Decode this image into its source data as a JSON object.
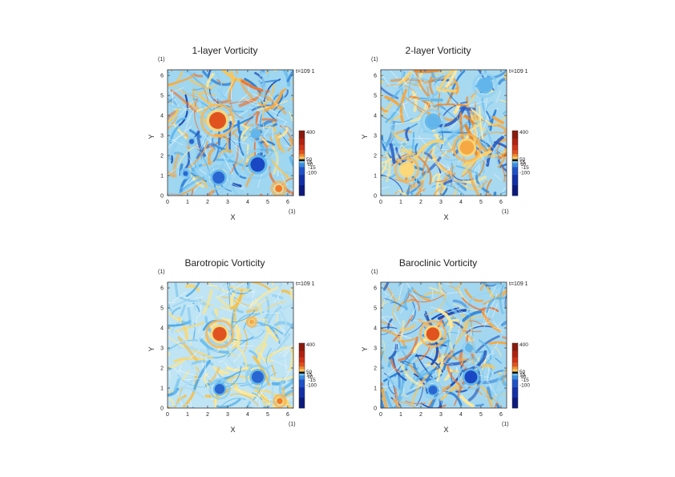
{
  "chart_data": [
    {
      "type": "heatmap",
      "title": "1-layer Vorticity",
      "xlabel": "X",
      "ylabel": "Y",
      "x_unit": "(1)",
      "y_unit": "(1)",
      "time_label": "t=109 1",
      "xlim": [
        0,
        6.283
      ],
      "ylim": [
        0,
        6.283
      ],
      "xticks": [
        "0",
        "1",
        "2",
        "3",
        "4",
        "5",
        "6"
      ],
      "yticks": [
        "0",
        "1",
        "2",
        "3",
        "4",
        "5",
        "6"
      ],
      "colorbar": {
        "labels": [
          "400",
          "50",
          "15",
          "10",
          "-15",
          "-100"
        ],
        "values": [
          400,
          50,
          15,
          10,
          -15,
          -100
        ]
      },
      "features": [
        {
          "x": 2.5,
          "y": 3.75,
          "r": 0.42,
          "vorticity": 400
        },
        {
          "x": 4.5,
          "y": 1.55,
          "r": 0.36,
          "vorticity": -200
        },
        {
          "x": 2.55,
          "y": 0.9,
          "r": 0.3,
          "vorticity": -150
        },
        {
          "x": 5.55,
          "y": 0.35,
          "r": 0.18,
          "vorticity": 250
        },
        {
          "x": 4.4,
          "y": 3.1,
          "r": 0.2,
          "vorticity": -90
        },
        {
          "x": 1.2,
          "y": 2.7,
          "r": 0.12,
          "vorticity": -120
        },
        {
          "x": 0.9,
          "y": 1.1,
          "r": 0.12,
          "vorticity": -100
        }
      ]
    },
    {
      "type": "heatmap",
      "title": "2-layer Vorticity",
      "xlabel": "X",
      "ylabel": "Y",
      "x_unit": "(1)",
      "y_unit": "(1)",
      "time_label": "t=109 1",
      "xlim": [
        0,
        6.283
      ],
      "ylim": [
        0,
        6.283
      ],
      "xticks": [
        "0",
        "1",
        "2",
        "3",
        "4",
        "5",
        "6"
      ],
      "yticks": [
        "0",
        "1",
        "2",
        "3",
        "4",
        "5",
        "6"
      ],
      "colorbar": {
        "labels": [
          "400",
          "50",
          "15",
          "10",
          "-15",
          "-100"
        ],
        "values": [
          400,
          50,
          15,
          10,
          -15,
          -100
        ]
      },
      "features": [
        {
          "x": 2.6,
          "y": 3.7,
          "r": 0.3,
          "vorticity": -40
        },
        {
          "x": 4.3,
          "y": 2.4,
          "r": 0.35,
          "vorticity": 60
        },
        {
          "x": 5.2,
          "y": 5.5,
          "r": 0.3,
          "vorticity": -80
        },
        {
          "x": 1.3,
          "y": 1.3,
          "r": 0.3,
          "vorticity": 50
        }
      ]
    },
    {
      "type": "heatmap",
      "title": "Barotropic Vorticity",
      "xlabel": "X",
      "ylabel": "Y",
      "x_unit": "(1)",
      "y_unit": "(1)",
      "time_label": "t=109 1",
      "xlim": [
        0,
        6.283
      ],
      "ylim": [
        0,
        6.283
      ],
      "xticks": [
        "0",
        "1",
        "2",
        "3",
        "4",
        "5",
        "6"
      ],
      "yticks": [
        "0",
        "1",
        "2",
        "3",
        "4",
        "5",
        "6"
      ],
      "colorbar": {
        "labels": [
          "400",
          "50",
          "15",
          "10",
          "-15",
          "-100"
        ],
        "values": [
          400,
          50,
          15,
          10,
          -15,
          -100
        ]
      },
      "features": [
        {
          "x": 2.6,
          "y": 3.7,
          "r": 0.35,
          "vorticity": 300
        },
        {
          "x": 4.5,
          "y": 1.55,
          "r": 0.3,
          "vorticity": -150
        },
        {
          "x": 2.6,
          "y": 0.95,
          "r": 0.25,
          "vorticity": -120
        },
        {
          "x": 5.6,
          "y": 0.35,
          "r": 0.15,
          "vorticity": 200
        },
        {
          "x": 4.2,
          "y": 4.3,
          "r": 0.12,
          "vorticity": 100
        }
      ]
    },
    {
      "type": "heatmap",
      "title": "Baroclinic Vorticity",
      "xlabel": "X",
      "ylabel": "Y",
      "x_unit": "(1)",
      "y_unit": "(1)",
      "time_label": "t=109 1",
      "xlim": [
        0,
        6.283
      ],
      "ylim": [
        0,
        6.283
      ],
      "xticks": [
        "0",
        "1",
        "2",
        "3",
        "4",
        "5",
        "6"
      ],
      "yticks": [
        "0",
        "1",
        "2",
        "3",
        "4",
        "5",
        "6"
      ],
      "colorbar": {
        "labels": [
          "400",
          "50",
          "15",
          "10",
          "-15",
          "-100"
        ],
        "values": [
          400,
          50,
          15,
          10,
          -15,
          -100
        ]
      },
      "features": [
        {
          "x": 2.6,
          "y": 3.7,
          "r": 0.33,
          "vorticity": 350
        },
        {
          "x": 4.5,
          "y": 1.55,
          "r": 0.32,
          "vorticity": -200
        },
        {
          "x": 2.6,
          "y": 0.9,
          "r": 0.22,
          "vorticity": -150
        },
        {
          "x": 4.4,
          "y": 3.0,
          "r": 0.15,
          "vorticity": -80
        }
      ]
    }
  ]
}
